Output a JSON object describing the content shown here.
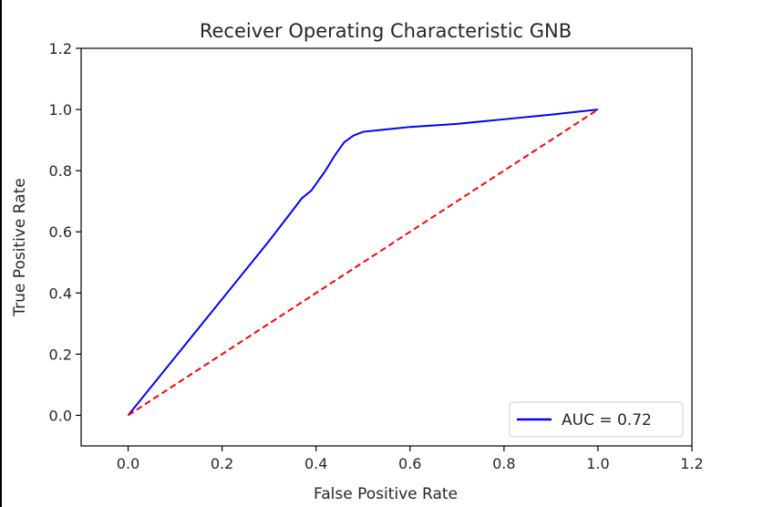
{
  "chart_data": {
    "type": "line",
    "title": "Receiver Operating Characteristic GNB",
    "xlabel": "False Positive Rate",
    "ylabel": "True Positive Rate",
    "xlim": [
      -0.1,
      1.2
    ],
    "ylim": [
      -0.1,
      1.2
    ],
    "x_ticks": [
      "0.0",
      "0.2",
      "0.4",
      "0.6",
      "0.8",
      "1.0",
      "1.2"
    ],
    "y_ticks": [
      "0.0",
      "0.2",
      "0.4",
      "0.6",
      "0.8",
      "1.0",
      "1.2"
    ],
    "legend_position": "bottom-right",
    "series": [
      {
        "name": "AUC = 0.72",
        "color": "#0000ff",
        "style": "solid",
        "x": [
          0.0,
          0.1,
          0.2,
          0.3,
          0.37,
          0.39,
          0.42,
          0.44,
          0.46,
          0.48,
          0.5,
          0.55,
          0.6,
          0.7,
          0.8,
          0.9,
          1.0
        ],
        "y": [
          0.0,
          0.19,
          0.38,
          0.57,
          0.71,
          0.735,
          0.8,
          0.85,
          0.893,
          0.915,
          0.927,
          0.935,
          0.943,
          0.953,
          0.968,
          0.983,
          1.0
        ]
      },
      {
        "name": "",
        "color": "#ff0000",
        "style": "dashed",
        "x": [
          0.0,
          1.0
        ],
        "y": [
          0.0,
          1.0
        ]
      }
    ]
  }
}
